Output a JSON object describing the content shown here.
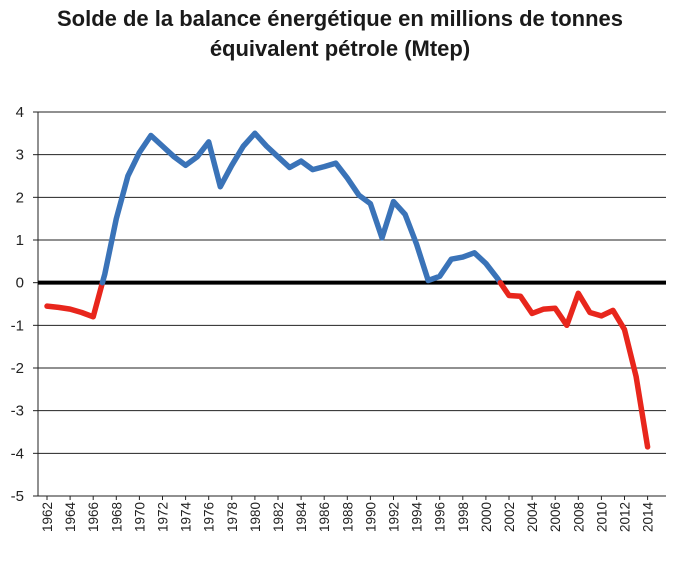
{
  "chart_data": {
    "type": "line",
    "title_line1": "Solde de la balance énergétique en millions de tonnes",
    "title_line2": "équivalent pétrole (Mtep)",
    "xlabel": "",
    "ylabel": "",
    "ylim": [
      -5,
      4
    ],
    "xlim": [
      1962,
      2015
    ],
    "y_ticks": [
      "4",
      "3",
      "2",
      "1",
      "0",
      "-1",
      "-2",
      "-3",
      "-4",
      "-5"
    ],
    "x_ticks": [
      "1962",
      "1964",
      "1966",
      "1968",
      "1970",
      "1972",
      "1974",
      "1976",
      "1978",
      "1980",
      "1982",
      "1984",
      "1986",
      "1988",
      "1990",
      "1992",
      "1994",
      "1996",
      "1998",
      "2000",
      "2002",
      "2004",
      "2006",
      "2008",
      "2010",
      "2012",
      "2014"
    ],
    "grid": true,
    "zero_line": true,
    "colors": {
      "positive": "#3a73b8",
      "negative": "#e8261c",
      "zero_line": "#000000",
      "grid": "#222222"
    },
    "x": [
      1962,
      1963,
      1964,
      1965,
      1966,
      1967,
      1968,
      1969,
      1970,
      1971,
      1972,
      1973,
      1974,
      1975,
      1976,
      1977,
      1978,
      1979,
      1980,
      1981,
      1982,
      1983,
      1984,
      1985,
      1986,
      1987,
      1988,
      1989,
      1990,
      1991,
      1992,
      1993,
      1994,
      1995,
      1996,
      1997,
      1998,
      1999,
      2000,
      2001,
      2002,
      2003,
      2004,
      2005,
      2006,
      2007,
      2008,
      2009,
      2010,
      2011,
      2012,
      2013,
      2014
    ],
    "y": [
      -0.55,
      -0.58,
      -0.62,
      -0.7,
      -0.8,
      0.2,
      1.5,
      2.5,
      3.05,
      3.45,
      3.2,
      2.95,
      2.75,
      2.95,
      3.3,
      2.25,
      2.75,
      3.2,
      3.5,
      3.2,
      2.95,
      2.7,
      2.85,
      2.65,
      2.72,
      2.8,
      2.45,
      2.05,
      1.85,
      1.05,
      1.9,
      1.6,
      0.9,
      0.05,
      0.15,
      0.55,
      0.6,
      0.7,
      0.45,
      0.1,
      -0.3,
      -0.32,
      -0.72,
      -0.62,
      -0.6,
      -1.0,
      -0.25,
      -0.7,
      -0.78,
      -0.65,
      -1.1,
      -2.2,
      -3.85
    ]
  }
}
